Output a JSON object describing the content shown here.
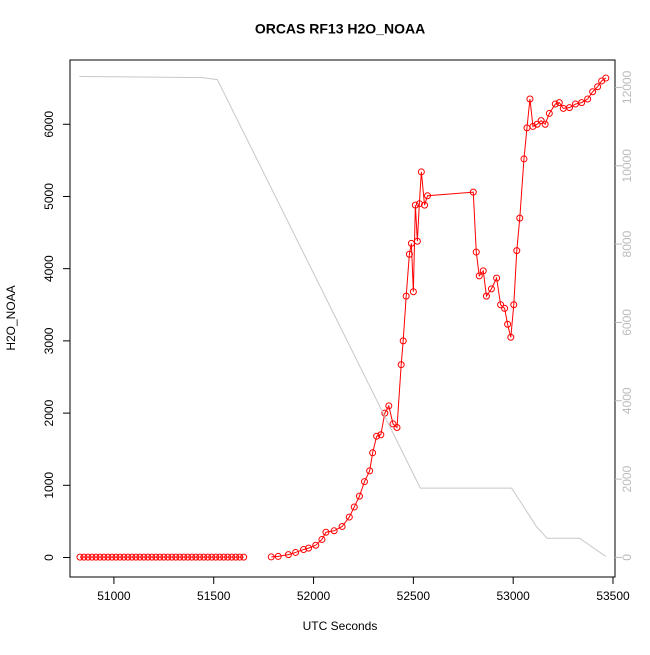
{
  "chart_data": {
    "type": "line",
    "title": "ORCAS RF13 H2O_NOAA",
    "x_label": "UTC Seconds",
    "y_label": "H2O_NOAA",
    "xlim": [
      50780,
      53510
    ],
    "xticks": [
      51000,
      51500,
      52000,
      52500,
      53000,
      53500
    ],
    "ylim": [
      -270,
      6890
    ],
    "yticks": [
      0,
      1000,
      2000,
      3000,
      4000,
      5000,
      6000
    ],
    "y2lim": [
      -500,
      12700
    ],
    "y2ticks": [
      0,
      2000,
      4000,
      6000,
      8000,
      10000,
      12000
    ],
    "series": [
      {
        "color": "#ff0000",
        "markers": true,
        "x": [
          50830,
          50850,
          50870,
          50890,
          50910,
          50930,
          50950,
          50970,
          50990,
          51010,
          51030,
          51050,
          51070,
          51090,
          51110,
          51130,
          51150,
          51170,
          51190,
          51210,
          51230,
          51250,
          51270,
          51290,
          51310,
          51330,
          51350,
          51370,
          51390,
          51410,
          51430,
          51450,
          51470,
          51490,
          51510,
          51530,
          51550,
          51570,
          51590,
          51610,
          51630,
          51650,
          51720,
          51788,
          51823,
          51874,
          51910,
          51950,
          51975,
          52011,
          52042,
          52062,
          52103,
          52143,
          52179,
          52204,
          52230,
          52255,
          52281,
          52296,
          52316,
          52337,
          52357,
          52377,
          52398,
          52418,
          52439,
          52449,
          52464,
          52480,
          52490,
          52500,
          52510,
          52520,
          52530,
          52540,
          52556,
          52571,
          52800,
          52815,
          52830,
          52850,
          52866,
          52891,
          52917,
          52937,
          52957,
          52972,
          52988,
          53003,
          53018,
          53033,
          53054,
          53069,
          53084,
          53099,
          53120,
          53140,
          53160,
          53181,
          53211,
          53231,
          53251,
          53282,
          53312,
          53343,
          53373,
          53398,
          53423,
          53443,
          53464
        ],
        "values": [
          5,
          5,
          5,
          5,
          5,
          5,
          5,
          5,
          5,
          5,
          5,
          5,
          5,
          5,
          5,
          5,
          5,
          5,
          5,
          5,
          5,
          5,
          5,
          5,
          5,
          5,
          5,
          5,
          5,
          5,
          5,
          5,
          5,
          5,
          5,
          5,
          5,
          5,
          5,
          5,
          5,
          5,
          null,
          8,
          15,
          40,
          70,
          110,
          130,
          170,
          250,
          350,
          370,
          430,
          560,
          700,
          850,
          1050,
          1200,
          1450,
          1680,
          1700,
          2000,
          2100,
          1850,
          1800,
          2670,
          3000,
          3620,
          4200,
          4350,
          3680,
          4880,
          4380,
          4900,
          5340,
          4880,
          5010,
          5060,
          4230,
          3900,
          3970,
          3620,
          3720,
          3870,
          3500,
          3450,
          3230,
          3050,
          3500,
          4250,
          4700,
          5520,
          5950,
          6350,
          5970,
          6000,
          6050,
          6000,
          6150,
          6280,
          6300,
          6220,
          6230,
          6280,
          6300,
          6350,
          6450,
          6520,
          6600,
          6640
        ]
      },
      {
        "color": "#c8c8c8",
        "axis": "y2",
        "markers": false,
        "x": [
          50827,
          51442,
          51518,
          52535,
          52992,
          53119,
          53170,
          53332,
          53464
        ],
        "values": [
          12280,
          12250,
          12200,
          1770,
          1770,
          770,
          490,
          490,
          25
        ]
      }
    ]
  }
}
